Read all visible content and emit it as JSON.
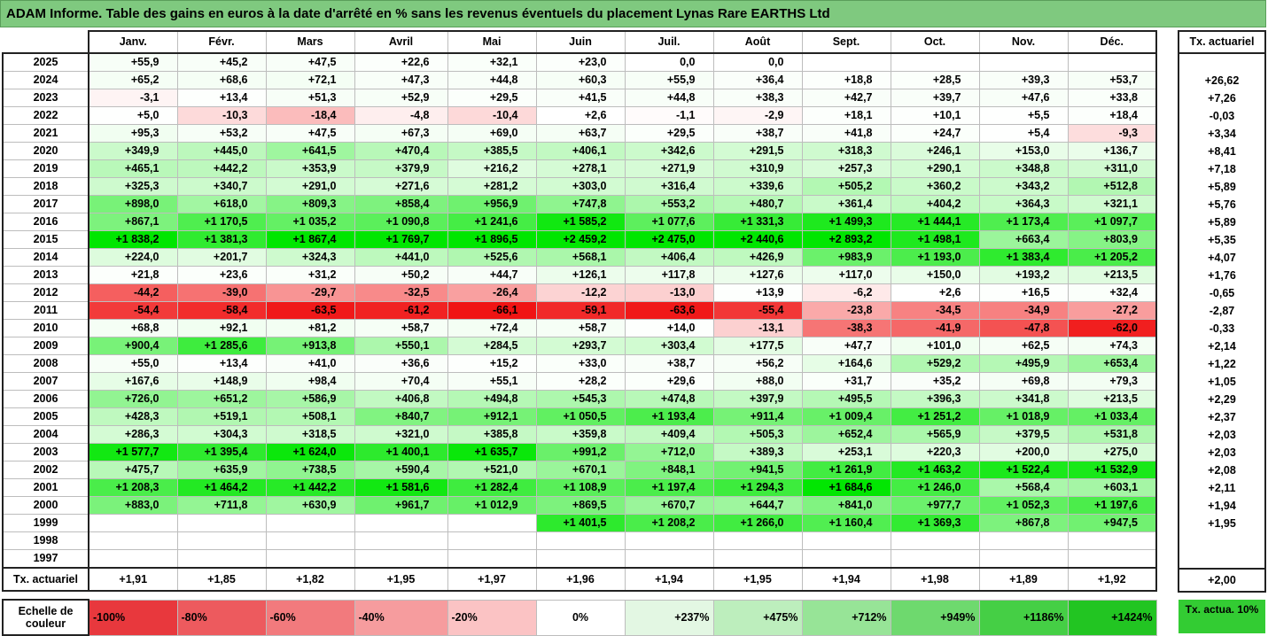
{
  "title": "ADAM Informe. Table des gains en euros à la date d'arrêté en % sans les revenus éventuels du placement Lynas Rare EARTHS Ltd",
  "months": [
    "Janv.",
    "Févr.",
    "Mars",
    "Avril",
    "Mai",
    "Juin",
    "Juil.",
    "Août",
    "Sept.",
    "Oct.",
    "Nov.",
    "Déc."
  ],
  "side_header": "Tx. actuariel",
  "tx_label": "Tx. actuariel",
  "rows": [
    {
      "year": "2025",
      "values": [
        "+55,9",
        "+45,2",
        "+47,5",
        "+22,6",
        "+32,1",
        "+23,0",
        "0,0",
        "0,0",
        "",
        "",
        "",
        ""
      ],
      "tx": ""
    },
    {
      "year": "2024",
      "values": [
        "+65,2",
        "+68,6",
        "+72,1",
        "+47,3",
        "+44,8",
        "+60,3",
        "+55,9",
        "+36,4",
        "+18,8",
        "+28,5",
        "+39,3",
        "+53,7"
      ],
      "tx": "+26,62"
    },
    {
      "year": "2023",
      "values": [
        "-3,1",
        "+13,4",
        "+51,3",
        "+52,9",
        "+29,5",
        "+41,5",
        "+44,8",
        "+38,3",
        "+42,7",
        "+39,7",
        "+47,6",
        "+33,8"
      ],
      "tx": "+7,26"
    },
    {
      "year": "2022",
      "values": [
        "+5,0",
        "-10,3",
        "-18,4",
        "-4,8",
        "-10,4",
        "+2,6",
        "-1,1",
        "-2,9",
        "+18,1",
        "+10,1",
        "+5,5",
        "+18,4"
      ],
      "tx": "-0,03"
    },
    {
      "year": "2021",
      "values": [
        "+95,3",
        "+53,2",
        "+47,5",
        "+67,3",
        "+69,0",
        "+63,7",
        "+29,5",
        "+38,7",
        "+41,8",
        "+24,7",
        "+5,4",
        "-9,3"
      ],
      "tx": "+3,34"
    },
    {
      "year": "2020",
      "values": [
        "+349,9",
        "+445,0",
        "+641,5",
        "+470,4",
        "+385,5",
        "+406,1",
        "+342,6",
        "+291,5",
        "+318,3",
        "+246,1",
        "+153,0",
        "+136,7"
      ],
      "tx": "+8,41"
    },
    {
      "year": "2019",
      "values": [
        "+465,1",
        "+442,2",
        "+353,9",
        "+379,9",
        "+216,2",
        "+278,1",
        "+271,9",
        "+310,9",
        "+257,3",
        "+290,1",
        "+348,8",
        "+311,0"
      ],
      "tx": "+7,18"
    },
    {
      "year": "2018",
      "values": [
        "+325,3",
        "+340,7",
        "+291,0",
        "+271,6",
        "+281,2",
        "+303,0",
        "+316,4",
        "+339,6",
        "+505,2",
        "+360,2",
        "+343,2",
        "+512,8"
      ],
      "tx": "+5,89"
    },
    {
      "year": "2017",
      "values": [
        "+898,0",
        "+618,0",
        "+809,3",
        "+858,4",
        "+956,9",
        "+747,8",
        "+553,2",
        "+480,7",
        "+361,4",
        "+404,2",
        "+364,3",
        "+321,1"
      ],
      "tx": "+5,76"
    },
    {
      "year": "2016",
      "values": [
        "+867,1",
        "+1 170,5",
        "+1 035,2",
        "+1 090,8",
        "+1 241,6",
        "+1 585,2",
        "+1 077,6",
        "+1 331,3",
        "+1 499,3",
        "+1 444,1",
        "+1 173,4",
        "+1 097,7"
      ],
      "tx": "+5,89"
    },
    {
      "year": "2015",
      "values": [
        "+1 838,2",
        "+1 381,3",
        "+1 867,4",
        "+1 769,7",
        "+1 896,5",
        "+2 459,2",
        "+2 475,0",
        "+2 440,6",
        "+2 893,2",
        "+1 498,1",
        "+663,4",
        "+803,9"
      ],
      "tx": "+5,35"
    },
    {
      "year": "2014",
      "values": [
        "+224,0",
        "+201,7",
        "+324,3",
        "+441,0",
        "+525,6",
        "+568,1",
        "+406,4",
        "+426,9",
        "+983,9",
        "+1 193,0",
        "+1 383,4",
        "+1 205,2"
      ],
      "tx": "+4,07"
    },
    {
      "year": "2013",
      "values": [
        "+21,8",
        "+23,6",
        "+31,2",
        "+50,2",
        "+44,7",
        "+126,1",
        "+117,8",
        "+127,6",
        "+117,0",
        "+150,0",
        "+193,2",
        "+213,5"
      ],
      "tx": "+1,76"
    },
    {
      "year": "2012",
      "values": [
        "-44,2",
        "-39,0",
        "-29,7",
        "-32,5",
        "-26,4",
        "-12,2",
        "-13,0",
        "+13,9",
        "-6,2",
        "+2,6",
        "+16,5",
        "+32,4"
      ],
      "tx": "-0,65"
    },
    {
      "year": "2011",
      "values": [
        "-54,4",
        "-58,4",
        "-63,5",
        "-61,2",
        "-66,1",
        "-59,1",
        "-63,6",
        "-55,4",
        "-23,8",
        "-34,5",
        "-34,9",
        "-27,2"
      ],
      "tx": "-2,87"
    },
    {
      "year": "2010",
      "values": [
        "+68,8",
        "+92,1",
        "+81,2",
        "+58,7",
        "+72,4",
        "+58,7",
        "+14,0",
        "-13,1",
        "-38,3",
        "-41,9",
        "-47,8",
        "-62,0"
      ],
      "tx": "-0,33"
    },
    {
      "year": "2009",
      "values": [
        "+900,4",
        "+1 285,6",
        "+913,8",
        "+550,1",
        "+284,5",
        "+293,7",
        "+303,4",
        "+177,5",
        "+47,7",
        "+101,0",
        "+62,5",
        "+74,3"
      ],
      "tx": "+2,14"
    },
    {
      "year": "2008",
      "values": [
        "+55,0",
        "+13,4",
        "+41,0",
        "+36,6",
        "+15,2",
        "+33,0",
        "+38,7",
        "+56,2",
        "+164,6",
        "+529,2",
        "+495,9",
        "+653,4"
      ],
      "tx": "+1,22"
    },
    {
      "year": "2007",
      "values": [
        "+167,6",
        "+148,9",
        "+98,4",
        "+70,4",
        "+55,1",
        "+28,2",
        "+29,6",
        "+88,0",
        "+31,7",
        "+35,2",
        "+69,8",
        "+79,3"
      ],
      "tx": "+1,05"
    },
    {
      "year": "2006",
      "values": [
        "+726,0",
        "+651,2",
        "+586,9",
        "+406,8",
        "+494,8",
        "+545,3",
        "+474,8",
        "+397,9",
        "+495,5",
        "+396,3",
        "+341,8",
        "+213,5"
      ],
      "tx": "+2,29"
    },
    {
      "year": "2005",
      "values": [
        "+428,3",
        "+519,1",
        "+508,1",
        "+840,7",
        "+912,1",
        "+1 050,5",
        "+1 193,4",
        "+911,4",
        "+1 009,4",
        "+1 251,2",
        "+1 018,9",
        "+1 033,4"
      ],
      "tx": "+2,37"
    },
    {
      "year": "2004",
      "values": [
        "+286,3",
        "+304,3",
        "+318,5",
        "+321,0",
        "+385,8",
        "+359,8",
        "+409,4",
        "+505,3",
        "+652,4",
        "+565,9",
        "+379,5",
        "+531,8"
      ],
      "tx": "+2,03"
    },
    {
      "year": "2003",
      "values": [
        "+1 577,7",
        "+1 395,4",
        "+1 624,0",
        "+1 400,1",
        "+1 635,7",
        "+991,2",
        "+712,0",
        "+389,3",
        "+253,1",
        "+220,3",
        "+200,0",
        "+275,0"
      ],
      "tx": "+2,03"
    },
    {
      "year": "2002",
      "values": [
        "+475,7",
        "+635,9",
        "+738,5",
        "+590,4",
        "+521,0",
        "+670,1",
        "+848,1",
        "+941,5",
        "+1 261,9",
        "+1 463,2",
        "+1 522,4",
        "+1 532,9"
      ],
      "tx": "+2,08"
    },
    {
      "year": "2001",
      "values": [
        "+1 208,3",
        "+1 464,2",
        "+1 442,2",
        "+1 581,6",
        "+1 282,4",
        "+1 108,9",
        "+1 197,4",
        "+1 294,3",
        "+1 684,6",
        "+1 246,0",
        "+568,4",
        "+603,1"
      ],
      "tx": "+2,11"
    },
    {
      "year": "2000",
      "values": [
        "+883,0",
        "+711,8",
        "+630,9",
        "+961,7",
        "+1 012,9",
        "+869,5",
        "+670,7",
        "+644,7",
        "+841,0",
        "+977,7",
        "+1 052,3",
        "+1 197,6"
      ],
      "tx": "+1,94"
    },
    {
      "year": "1999",
      "values": [
        "",
        "",
        "",
        "",
        "",
        "+1 401,5",
        "+1 208,2",
        "+1 266,0",
        "+1 160,4",
        "+1 369,3",
        "+867,8",
        "+947,5"
      ],
      "tx": "+1,95"
    },
    {
      "year": "1998",
      "values": [
        "",
        "",
        "",
        "",
        "",
        "",
        "",
        "",
        "",
        "",
        "",
        ""
      ],
      "tx": ""
    },
    {
      "year": "1997",
      "values": [
        "",
        "",
        "",
        "",
        "",
        "",
        "",
        "",
        "",
        "",
        "",
        ""
      ],
      "tx": ""
    }
  ],
  "tx_row": {
    "values": [
      "+1,91",
      "+1,85",
      "+1,82",
      "+1,95",
      "+1,97",
      "+1,96",
      "+1,94",
      "+1,95",
      "+1,94",
      "+1,98",
      "+1,89",
      "+1,92"
    ],
    "total": "+2,00"
  },
  "legend": {
    "label": "Echelle de couleur",
    "cells": [
      {
        "text": "-100%",
        "color": "#e8383d",
        "side": "neg"
      },
      {
        "text": "-80%",
        "color": "#ed5a5e",
        "side": "neg"
      },
      {
        "text": "-60%",
        "color": "#f27a7d",
        "side": "neg"
      },
      {
        "text": "-40%",
        "color": "#f69c9e",
        "side": "neg"
      },
      {
        "text": "-20%",
        "color": "#fbc3c4",
        "side": "neg"
      },
      {
        "text": "0%",
        "color": "#ffffff",
        "side": "mid"
      },
      {
        "text": "+237%",
        "color": "#e3f7e3",
        "side": "pos"
      },
      {
        "text": "+475%",
        "color": "#bdeebd",
        "side": "pos"
      },
      {
        "text": "+712%",
        "color": "#97e497",
        "side": "pos"
      },
      {
        "text": "+949%",
        "color": "#6ed96e",
        "side": "pos"
      },
      {
        "text": "+1186%",
        "color": "#45cf45",
        "side": "pos"
      },
      {
        "text": "+1424%",
        "color": "#22c522",
        "side": "pos"
      }
    ],
    "tx_label": "Tx. actua. 10%",
    "tx_color": "#33cc33"
  }
}
